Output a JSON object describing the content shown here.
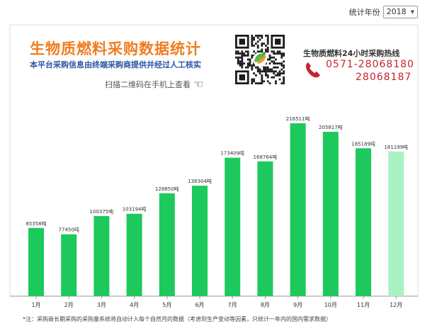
{
  "header": {
    "year_label": "统计年份",
    "year_value": "2018"
  },
  "banner": {
    "title": "生物质燃料采购数据统计",
    "subtitle": "本平台采购信息由终端采购商提供并经过人工核实",
    "scan_text": "扫描二维码在手机上查看",
    "hotline_title": "生物质燃料24小时采购热线",
    "phone_1": "0571-28068180",
    "phone_2": "28068187"
  },
  "footnote": "*注：采购商长期采购的采购量系统将自动计入每个自然月的数据（考虑到生产变动等因素，只统计一年内的国内需求数据）",
  "colors": {
    "bar": "#1dc95c",
    "bar_current": "#a9f2c5",
    "title": "#f07d1e",
    "subtitle": "#2a55a5",
    "phone": "#c8232c"
  },
  "chart_data": {
    "type": "bar",
    "categories": [
      "1月",
      "2月",
      "3月",
      "4月",
      "5月",
      "6月",
      "7月",
      "8月",
      "9月",
      "10月",
      "11月",
      "12月"
    ],
    "values": [
      85358,
      77450,
      100375,
      103194,
      128850,
      138304,
      173409,
      168764,
      216511,
      205817,
      185189,
      181199
    ],
    "value_labels": [
      "85358吨",
      "77450吨",
      "100375吨",
      "103194吨",
      "128850吨",
      "138304吨",
      "173409吨",
      "168764吨",
      "216511吨",
      "205817吨",
      "185189吨",
      "181199吨"
    ],
    "highlight_index": 11,
    "ylim": [
      0,
      245000
    ],
    "grid": false,
    "title": "",
    "xlabel": "",
    "ylabel": ""
  }
}
